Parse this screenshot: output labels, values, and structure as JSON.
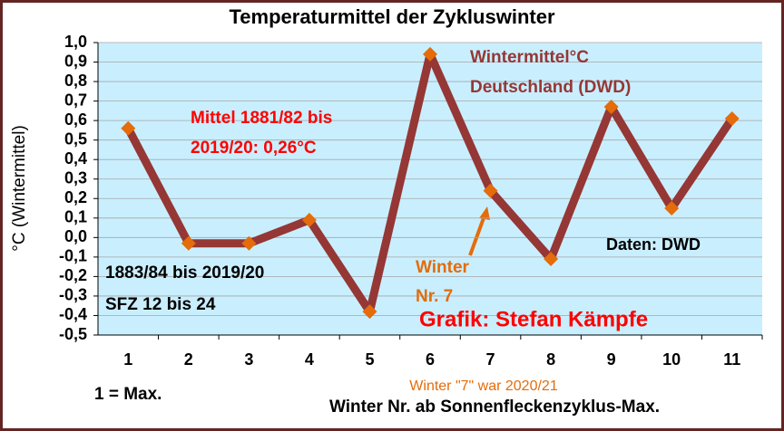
{
  "chart_data": {
    "type": "line",
    "title": "Temperaturmittel der Zykluswinter",
    "y_label": "°C (Wintermittel)",
    "x_label": "Winter Nr. ab Sonnenfleckenzyklus-Max.",
    "categories": [
      "1",
      "2",
      "3",
      "4",
      "5",
      "6",
      "7",
      "8",
      "9",
      "10",
      "11"
    ],
    "series": [
      {
        "color": "#953735",
        "marker_color": "#e46c0a",
        "values": [
          0.56,
          -0.03,
          -0.03,
          0.09,
          -0.38,
          0.94,
          0.24,
          -0.11,
          0.67,
          0.15,
          0.61
        ]
      }
    ],
    "ylim": [
      -0.5,
      1.0
    ],
    "yticks": [
      {
        "value": -0.5,
        "label": "-0,5"
      },
      {
        "value": -0.4,
        "label": "-0,4"
      },
      {
        "value": -0.3,
        "label": "-0,3"
      },
      {
        "value": -0.2,
        "label": "-0,2"
      },
      {
        "value": -0.1,
        "label": "-0,1"
      },
      {
        "value": 0,
        "label": "0,0"
      },
      {
        "value": 0.1,
        "label": "0,1"
      },
      {
        "value": 0.2,
        "label": "0,2"
      },
      {
        "value": 0.3,
        "label": "0,3"
      },
      {
        "value": 0.4,
        "label": "0,4"
      },
      {
        "value": 0.5,
        "label": "0,5"
      },
      {
        "value": 0.6,
        "label": "0,6"
      },
      {
        "value": 0.7,
        "label": "0,7"
      },
      {
        "value": 0.8,
        "label": "0,8"
      },
      {
        "value": 0.9,
        "label": "0,9"
      },
      {
        "value": 1.0,
        "label": "1,0"
      }
    ],
    "grid": true,
    "annotations": [
      {
        "text": "Wintermittel°C",
        "color": "#953735"
      },
      {
        "text": "Deutschland (DWD)",
        "color": "#953735"
      },
      {
        "text": "Mittel 1881/82 bis",
        "color": "#ff0000"
      },
      {
        "text": "2019/20: 0,26°C",
        "color": "#ff0000"
      },
      {
        "text": "1883/84 bis 2019/20",
        "color": "#000000"
      },
      {
        "text": "SFZ 12 bis 24",
        "color": "#000000"
      },
      {
        "text": "Daten: DWD",
        "color": "#000000"
      },
      {
        "text": "Winter",
        "color": "#e46c0a"
      },
      {
        "text": "Nr. 7",
        "color": "#e46c0a"
      },
      {
        "text": "Grafik: Stefan Kämpfe",
        "color": "#ff0000"
      },
      {
        "text": "Winter \"7\" war 2020/21",
        "color": "#e46c0a"
      },
      {
        "text": "1 = Max.",
        "color": "#000000"
      }
    ]
  }
}
